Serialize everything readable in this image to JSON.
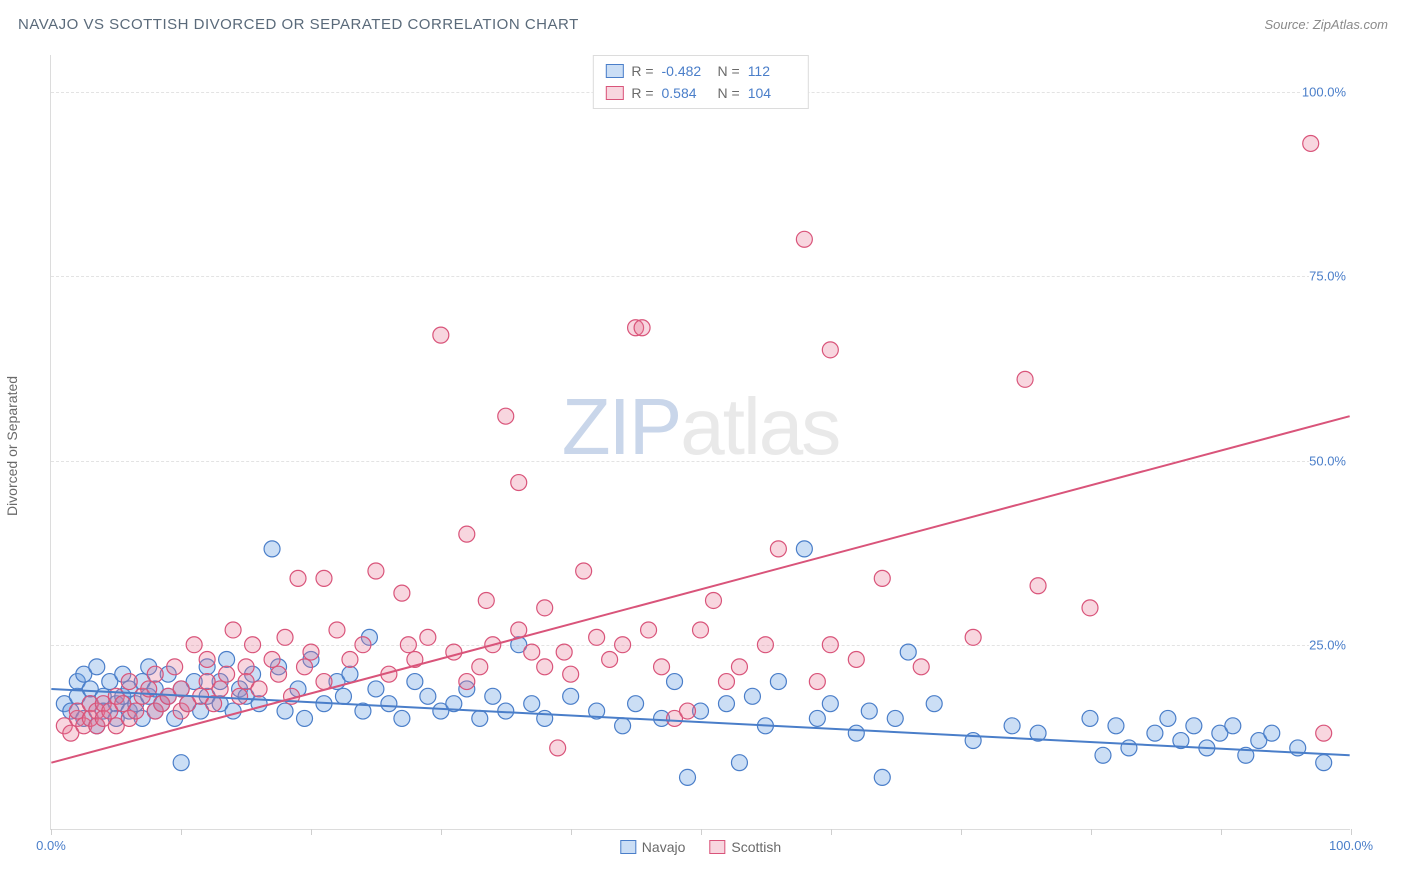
{
  "header": {
    "title": "NAVAJO VS SCOTTISH DIVORCED OR SEPARATED CORRELATION CHART",
    "source": "Source: ZipAtlas.com"
  },
  "chart": {
    "type": "scatter",
    "yaxis_title": "Divorced or Separated",
    "watermark_a": "ZIP",
    "watermark_b": "atlas",
    "xlim": [
      0,
      100
    ],
    "ylim": [
      0,
      105
    ],
    "yticks": [
      {
        "v": 25,
        "label": "25.0%"
      },
      {
        "v": 50,
        "label": "50.0%"
      },
      {
        "v": 75,
        "label": "75.0%"
      },
      {
        "v": 100,
        "label": "100.0%"
      }
    ],
    "xticks": [
      0,
      10,
      20,
      30,
      40,
      50,
      60,
      70,
      80,
      90,
      100
    ],
    "xlabels": [
      {
        "v": 0,
        "label": "0.0%"
      },
      {
        "v": 100,
        "label": "100.0%"
      }
    ],
    "grid_color": "#e3e3e3",
    "background_color": "#ffffff",
    "marker_radius": 8,
    "marker_stroke_width": 1.2,
    "line_width": 2,
    "series": [
      {
        "name": "Navajo",
        "fill": "rgba(107,160,227,0.35)",
        "stroke": "#4a7ec9",
        "R": "-0.482",
        "N": "112",
        "trend": {
          "x1": 0,
          "y1": 19,
          "x2": 100,
          "y2": 10
        },
        "points": [
          [
            1,
            17
          ],
          [
            1.5,
            16
          ],
          [
            2,
            18
          ],
          [
            2,
            20
          ],
          [
            2.5,
            15
          ],
          [
            2.5,
            21
          ],
          [
            3,
            17
          ],
          [
            3,
            19
          ],
          [
            3.5,
            22
          ],
          [
            3.5,
            14
          ],
          [
            4,
            18
          ],
          [
            4,
            16
          ],
          [
            4.5,
            20
          ],
          [
            5,
            17
          ],
          [
            5,
            15
          ],
          [
            5.5,
            18
          ],
          [
            5.5,
            21
          ],
          [
            6,
            16
          ],
          [
            6,
            19
          ],
          [
            6.5,
            17
          ],
          [
            7,
            20
          ],
          [
            7,
            15
          ],
          [
            7.5,
            18
          ],
          [
            7.5,
            22
          ],
          [
            8,
            16
          ],
          [
            8,
            19
          ],
          [
            8.5,
            17
          ],
          [
            9,
            18
          ],
          [
            9,
            21
          ],
          [
            9.5,
            15
          ],
          [
            10,
            19
          ],
          [
            10,
            9
          ],
          [
            10.5,
            17
          ],
          [
            11,
            20
          ],
          [
            11.5,
            16
          ],
          [
            12,
            18
          ],
          [
            12,
            22
          ],
          [
            13,
            17
          ],
          [
            13,
            20
          ],
          [
            13.5,
            23
          ],
          [
            14,
            16
          ],
          [
            14.5,
            19
          ],
          [
            15,
            18
          ],
          [
            15.5,
            21
          ],
          [
            16,
            17
          ],
          [
            17,
            38
          ],
          [
            17.5,
            22
          ],
          [
            18,
            16
          ],
          [
            19,
            19
          ],
          [
            19.5,
            15
          ],
          [
            20,
            23
          ],
          [
            21,
            17
          ],
          [
            22,
            20
          ],
          [
            22.5,
            18
          ],
          [
            23,
            21
          ],
          [
            24,
            16
          ],
          [
            24.5,
            26
          ],
          [
            25,
            19
          ],
          [
            26,
            17
          ],
          [
            27,
            15
          ],
          [
            28,
            20
          ],
          [
            29,
            18
          ],
          [
            30,
            16
          ],
          [
            31,
            17
          ],
          [
            32,
            19
          ],
          [
            33,
            15
          ],
          [
            34,
            18
          ],
          [
            35,
            16
          ],
          [
            36,
            25
          ],
          [
            37,
            17
          ],
          [
            38,
            15
          ],
          [
            40,
            18
          ],
          [
            42,
            16
          ],
          [
            44,
            14
          ],
          [
            45,
            17
          ],
          [
            47,
            15
          ],
          [
            48,
            20
          ],
          [
            49,
            7
          ],
          [
            50,
            16
          ],
          [
            52,
            17
          ],
          [
            53,
            9
          ],
          [
            54,
            18
          ],
          [
            55,
            14
          ],
          [
            56,
            20
          ],
          [
            58,
            38
          ],
          [
            59,
            15
          ],
          [
            60,
            17
          ],
          [
            62,
            13
          ],
          [
            63,
            16
          ],
          [
            64,
            7
          ],
          [
            65,
            15
          ],
          [
            66,
            24
          ],
          [
            68,
            17
          ],
          [
            71,
            12
          ],
          [
            74,
            14
          ],
          [
            76,
            13
          ],
          [
            80,
            15
          ],
          [
            81,
            10
          ],
          [
            82,
            14
          ],
          [
            83,
            11
          ],
          [
            85,
            13
          ],
          [
            86,
            15
          ],
          [
            87,
            12
          ],
          [
            88,
            14
          ],
          [
            89,
            11
          ],
          [
            90,
            13
          ],
          [
            91,
            14
          ],
          [
            92,
            10
          ],
          [
            93,
            12
          ],
          [
            94,
            13
          ],
          [
            96,
            11
          ],
          [
            98,
            9
          ]
        ]
      },
      {
        "name": "Scottish",
        "fill": "rgba(231,120,150,0.30)",
        "stroke": "#d9547a",
        "R": "0.584",
        "N": "104",
        "trend": {
          "x1": 0,
          "y1": 9,
          "x2": 100,
          "y2": 56
        },
        "points": [
          [
            1,
            14
          ],
          [
            1.5,
            13
          ],
          [
            2,
            15
          ],
          [
            2,
            16
          ],
          [
            2.5,
            14
          ],
          [
            3,
            17
          ],
          [
            3,
            15
          ],
          [
            3.5,
            16
          ],
          [
            3.5,
            14
          ],
          [
            4,
            17
          ],
          [
            4,
            15
          ],
          [
            4.5,
            16
          ],
          [
            5,
            18
          ],
          [
            5,
            14
          ],
          [
            5.5,
            17
          ],
          [
            6,
            15
          ],
          [
            6,
            20
          ],
          [
            6.5,
            16
          ],
          [
            7,
            18
          ],
          [
            7.5,
            19
          ],
          [
            8,
            16
          ],
          [
            8,
            21
          ],
          [
            8.5,
            17
          ],
          [
            9,
            18
          ],
          [
            9.5,
            22
          ],
          [
            10,
            16
          ],
          [
            10,
            19
          ],
          [
            10.5,
            17
          ],
          [
            11,
            25
          ],
          [
            11.5,
            18
          ],
          [
            12,
            20
          ],
          [
            12,
            23
          ],
          [
            12.5,
            17
          ],
          [
            13,
            19
          ],
          [
            13.5,
            21
          ],
          [
            14,
            27
          ],
          [
            14.5,
            18
          ],
          [
            15,
            22
          ],
          [
            15,
            20
          ],
          [
            15.5,
            25
          ],
          [
            16,
            19
          ],
          [
            17,
            23
          ],
          [
            17.5,
            21
          ],
          [
            18,
            26
          ],
          [
            18.5,
            18
          ],
          [
            19,
            34
          ],
          [
            19.5,
            22
          ],
          [
            20,
            24
          ],
          [
            21,
            20
          ],
          [
            21,
            34
          ],
          [
            22,
            27
          ],
          [
            23,
            23
          ],
          [
            24,
            25
          ],
          [
            25,
            35
          ],
          [
            26,
            21
          ],
          [
            27,
            32
          ],
          [
            27.5,
            25
          ],
          [
            28,
            23
          ],
          [
            29,
            26
          ],
          [
            30,
            67
          ],
          [
            31,
            24
          ],
          [
            32,
            20
          ],
          [
            32,
            40
          ],
          [
            33,
            22
          ],
          [
            33.5,
            31
          ],
          [
            34,
            25
          ],
          [
            35,
            56
          ],
          [
            36,
            27
          ],
          [
            36,
            47
          ],
          [
            37,
            24
          ],
          [
            38,
            22
          ],
          [
            38,
            30
          ],
          [
            39,
            11
          ],
          [
            39.5,
            24
          ],
          [
            40,
            21
          ],
          [
            41,
            35
          ],
          [
            42,
            26
          ],
          [
            43,
            23
          ],
          [
            44,
            25
          ],
          [
            45,
            68
          ],
          [
            45.5,
            68
          ],
          [
            46,
            27
          ],
          [
            47,
            22
          ],
          [
            48,
            15
          ],
          [
            49,
            16
          ],
          [
            50,
            27
          ],
          [
            51,
            31
          ],
          [
            52,
            20
          ],
          [
            53,
            22
          ],
          [
            55,
            25
          ],
          [
            56,
            38
          ],
          [
            58,
            80
          ],
          [
            59,
            20
          ],
          [
            60,
            25
          ],
          [
            60,
            65
          ],
          [
            62,
            23
          ],
          [
            64,
            34
          ],
          [
            67,
            22
          ],
          [
            71,
            26
          ],
          [
            75,
            61
          ],
          [
            76,
            33
          ],
          [
            80,
            30
          ],
          [
            97,
            93
          ],
          [
            98,
            13
          ]
        ]
      }
    ],
    "legend_bottom": [
      {
        "label": "Navajo",
        "fill": "rgba(107,160,227,0.35)",
        "stroke": "#4a7ec9"
      },
      {
        "label": "Scottish",
        "fill": "rgba(231,120,150,0.30)",
        "stroke": "#d9547a"
      }
    ]
  }
}
